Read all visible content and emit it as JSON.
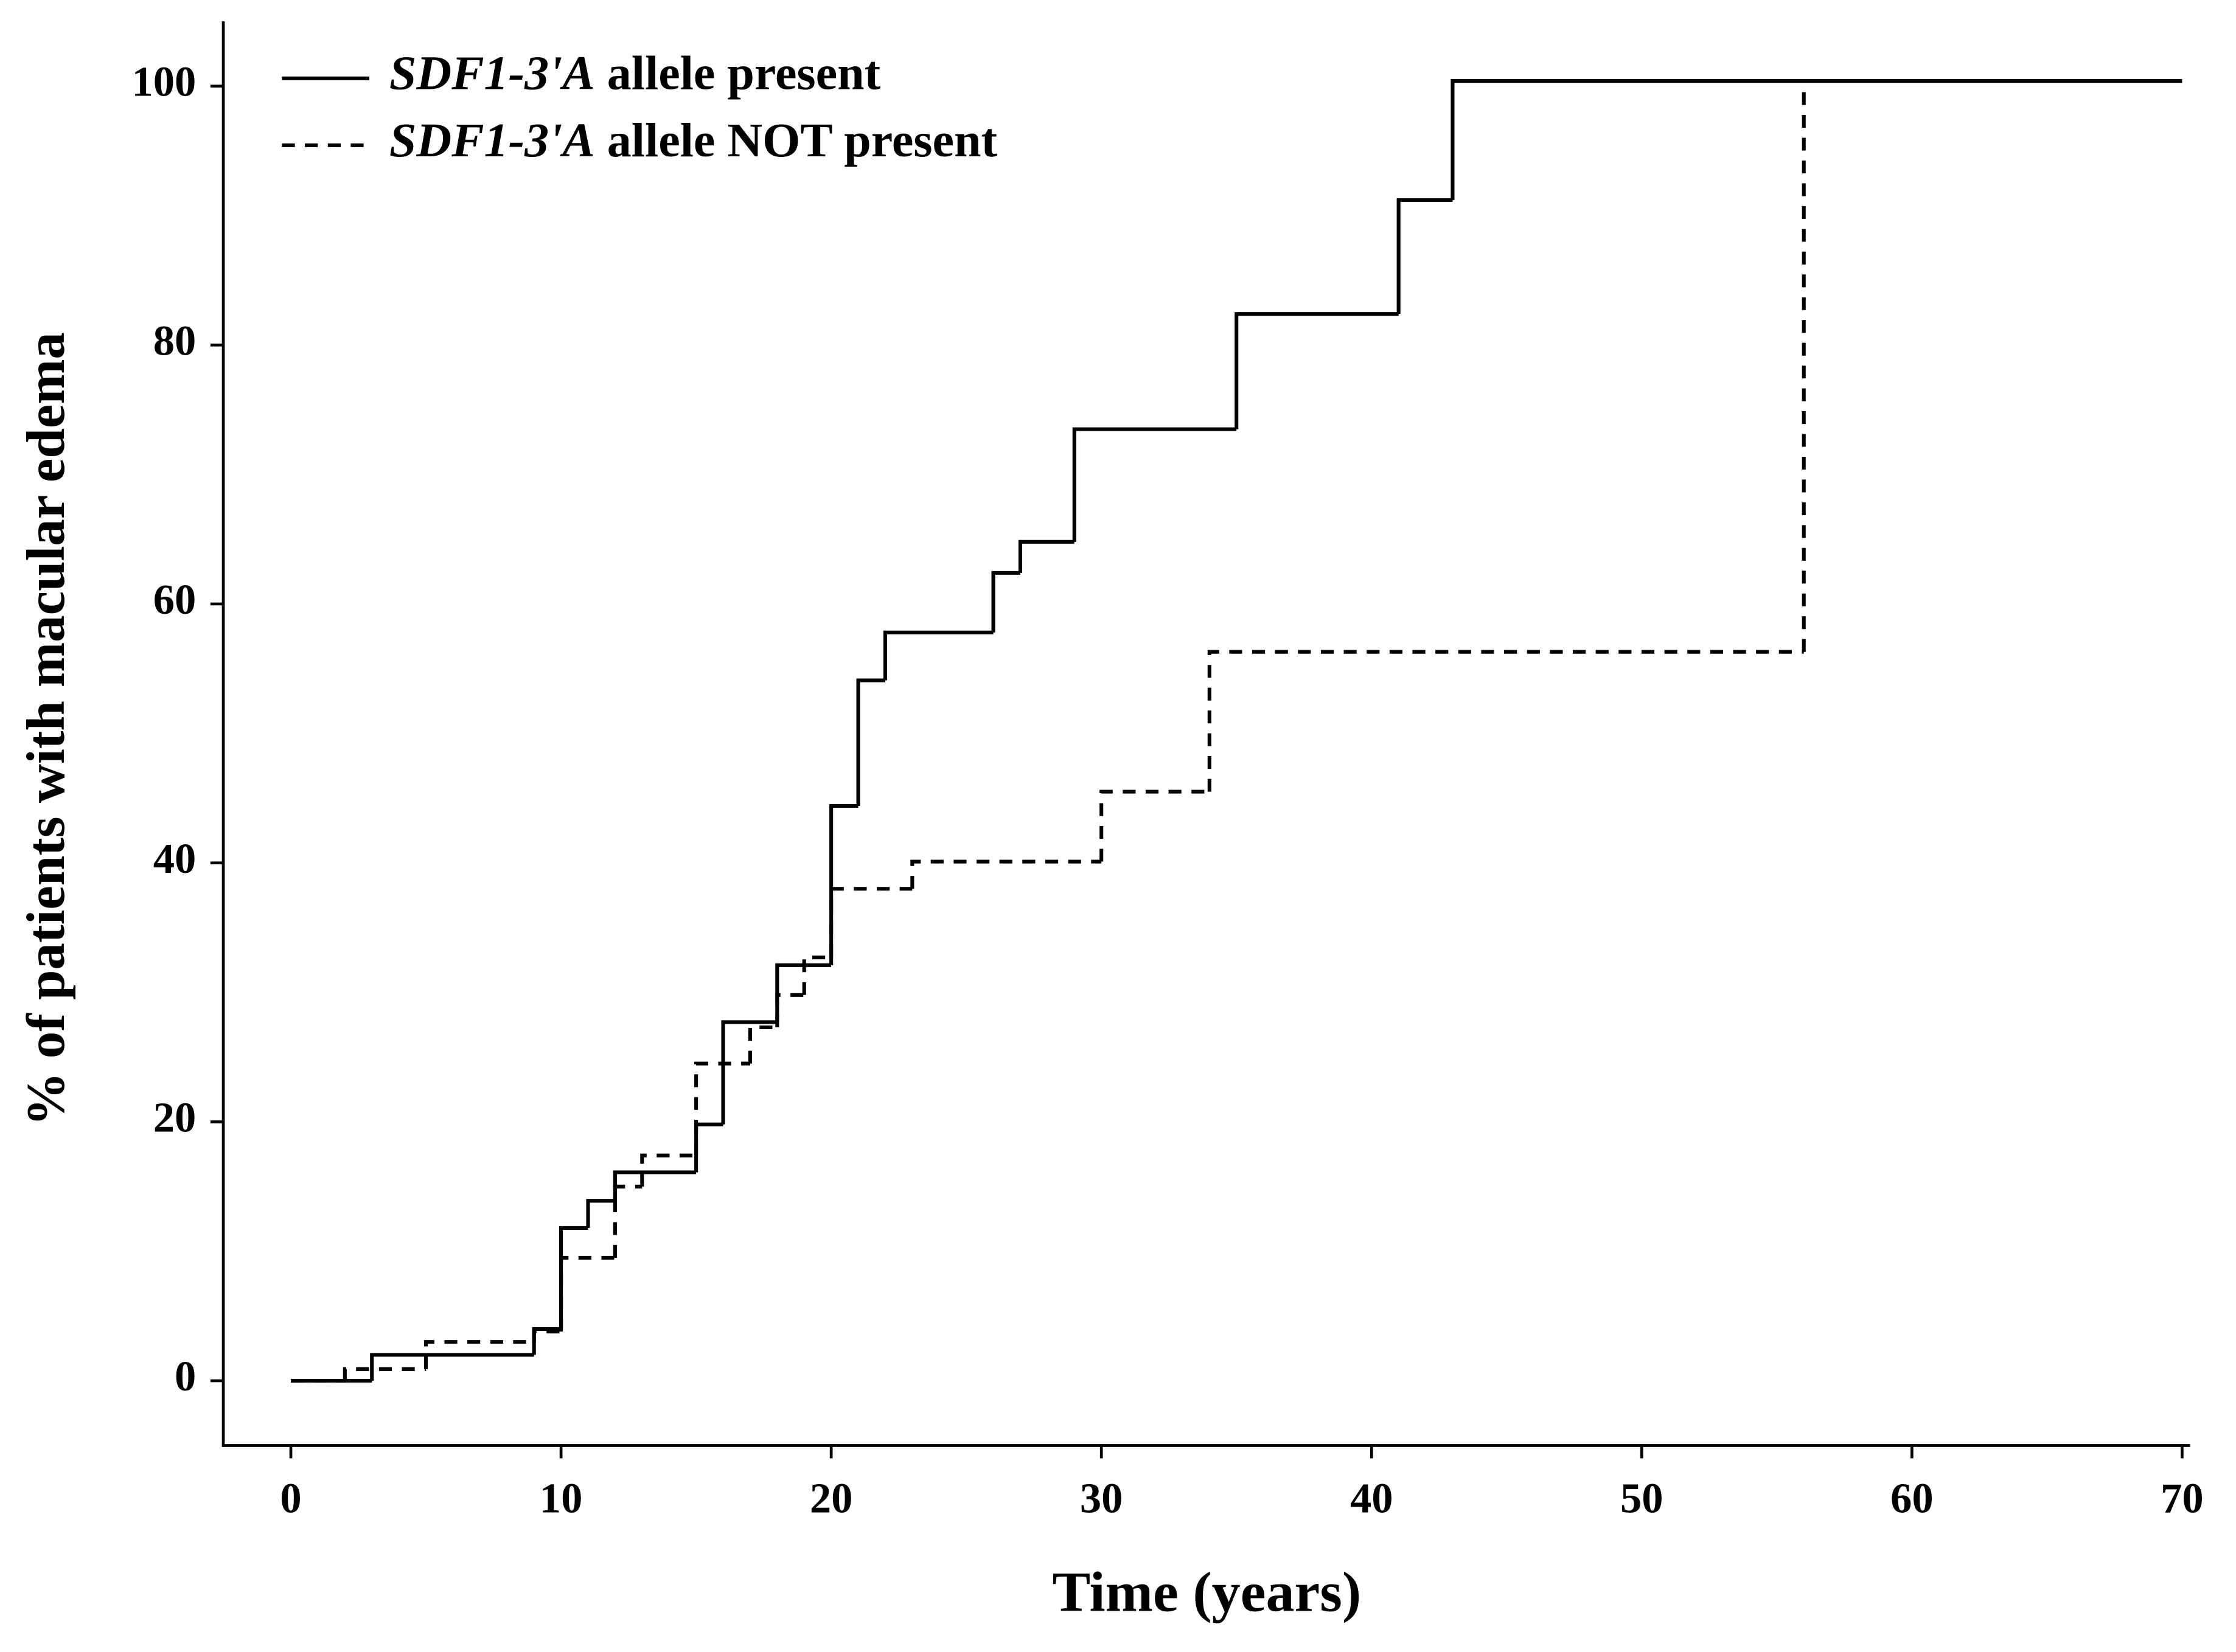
{
  "chart_data": {
    "type": "step",
    "xlabel": "Time (years)",
    "ylabel": "% of patients with macular edema",
    "xlim": [
      -2.5,
      70.3
    ],
    "ylim": [
      -5,
      105
    ],
    "xticks": [
      0,
      10,
      20,
      30,
      40,
      50,
      60,
      70
    ],
    "yticks": [
      0,
      20,
      40,
      60,
      80,
      100
    ],
    "legend": "upper left",
    "series": [
      {
        "name": "SDF1-3'A allele present",
        "color": "#000000",
        "dash": "solid",
        "x": [
          0,
          3,
          9,
          10,
          11,
          12,
          15,
          16,
          18,
          20,
          21,
          22,
          26,
          27,
          29,
          35,
          41,
          43,
          70
        ],
        "values": [
          0,
          2,
          4,
          11.8,
          13.9,
          16.1,
          19.8,
          27.7,
          32.1,
          44.4,
          54.1,
          57.8,
          62.4,
          64.8,
          73.5,
          82.4,
          91.2,
          100.4,
          100.4
        ]
      },
      {
        "name": "SDF1-3'A allele NOT present",
        "color": "#000000",
        "dash": "dashed",
        "x": [
          0,
          2,
          5,
          9,
          10,
          12,
          13,
          15,
          17,
          18,
          19,
          20,
          23,
          30,
          34,
          56
        ],
        "values": [
          0,
          0.9,
          3,
          3.8,
          9.5,
          15,
          17.4,
          24.5,
          27.3,
          29.8,
          32.7,
          38,
          40.1,
          45.5,
          56.3,
          100.4
        ]
      }
    ]
  }
}
